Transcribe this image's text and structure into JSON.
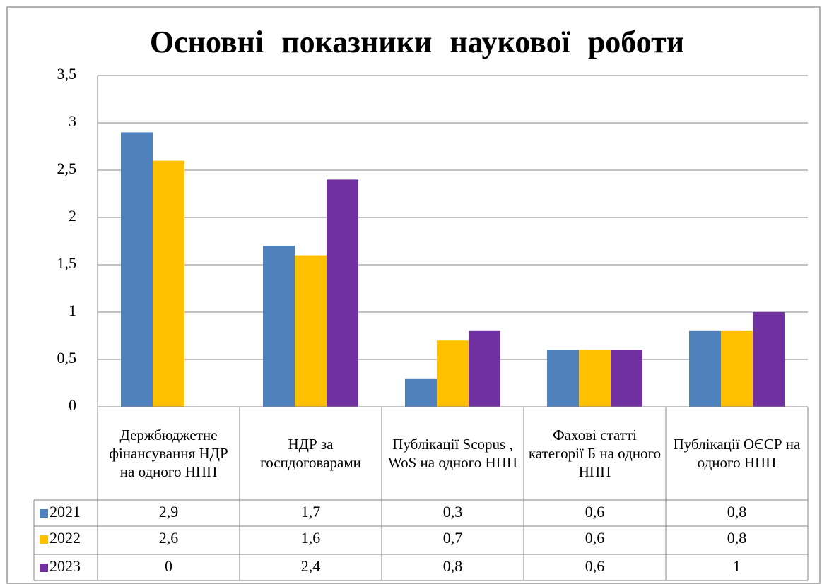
{
  "chart_data": {
    "type": "bar",
    "title": "Основні показники наукової роботи",
    "categories": [
      "Держбюджетне фінансування НДР на одного НПП",
      "НДР за госпдоговарами",
      "Публікації Scopus , WoS на одного НПП",
      "Фахові статті категорії Б на одного НПП",
      "Публікації ОЄСР на одного НПП"
    ],
    "series": [
      {
        "name": "2021",
        "color": "#4f81bd",
        "values": [
          2.9,
          1.7,
          0.3,
          0.6,
          0.8
        ],
        "value_labels": [
          "2,9",
          "1,7",
          "0,3",
          "0,6",
          "0,8"
        ]
      },
      {
        "name": "2022",
        "color": "#ffc000",
        "values": [
          2.6,
          1.6,
          0.7,
          0.6,
          0.8
        ],
        "value_labels": [
          "2,6",
          "1,6",
          "0,7",
          "0,6",
          "0,8"
        ]
      },
      {
        "name": "2023",
        "color": "#7030a0",
        "values": [
          0,
          2.4,
          0.8,
          0.6,
          1
        ],
        "value_labels": [
          "0",
          "2,4",
          "0,8",
          "0,6",
          "1"
        ]
      }
    ],
    "ylim": [
      0,
      3.5
    ],
    "yticks": [
      0,
      {
        "value": 0.5,
        "label": "0,5"
      },
      1,
      {
        "value": 1.5,
        "label": "1,5"
      },
      2,
      {
        "value": 2.5,
        "label": "2,5"
      },
      3,
      {
        "value": 3.5,
        "label": "3,5"
      }
    ],
    "grid": true
  }
}
